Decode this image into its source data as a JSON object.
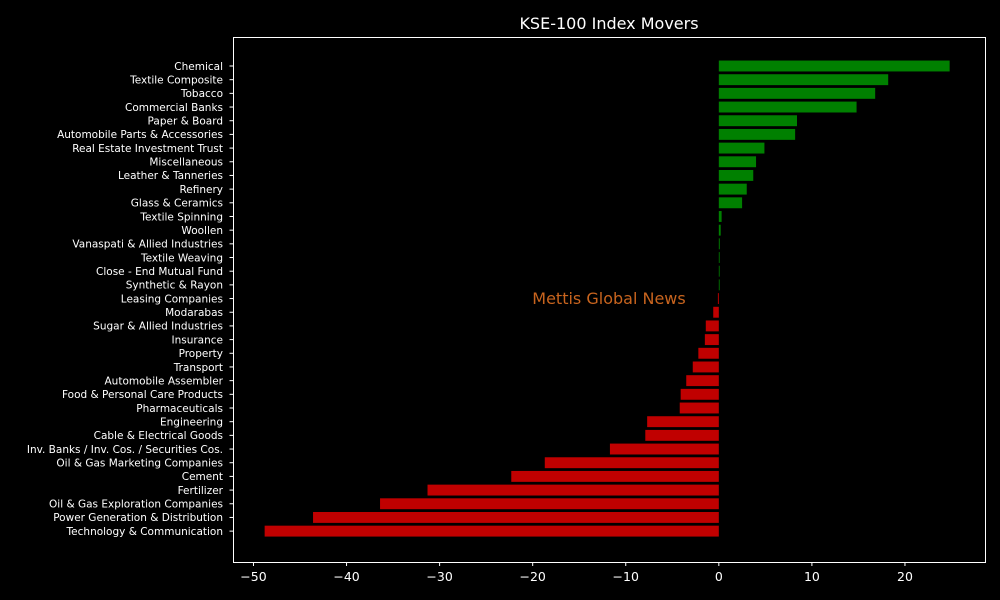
{
  "chart_data": {
    "type": "bar",
    "orientation": "horizontal",
    "title": "KSE-100 Index Movers",
    "xlabel": "",
    "ylabel": "",
    "xlim": [
      -52.2,
      28.6
    ],
    "xticks": [
      -50,
      -40,
      -30,
      -20,
      -10,
      0,
      10,
      20
    ],
    "xtick_labels": [
      "−50",
      "−40",
      "−30",
      "−20",
      "−10",
      "0",
      "10",
      "20"
    ],
    "grid": false,
    "positive_color": "#008000",
    "negative_color": "#c00000",
    "categories": [
      "Chemical",
      "Textile Composite",
      "Tobacco",
      "Commercial Banks",
      "Paper & Board",
      "Automobile Parts & Accessories",
      "Real Estate Investment Trust",
      "Miscellaneous",
      "Leather & Tanneries",
      "Refinery",
      "Glass & Ceramics",
      "Textile Spinning",
      "Woollen",
      "Vanaspati & Allied Industries",
      "Textile Weaving",
      "Close - End Mutual Fund",
      "Synthetic & Rayon",
      "Leasing Companies",
      "Modarabas",
      "Sugar & Allied Industries",
      "Insurance",
      "Property",
      "Transport",
      "Automobile Assembler",
      "Food & Personal Care Products",
      "Pharmaceuticals",
      "Engineering",
      "Cable & Electrical Goods",
      "Inv. Banks / Inv. Cos. / Securities Cos.",
      "Oil & Gas Marketing Companies",
      "Cement",
      "Fertilizer",
      "Oil & Gas Exploration Companies",
      "Power Generation & Distribution",
      "Technology & Communication"
    ],
    "values": [
      24.8,
      18.2,
      16.8,
      14.8,
      8.4,
      8.2,
      4.9,
      4.0,
      3.7,
      3.0,
      2.5,
      0.3,
      0.2,
      0.1,
      0.0,
      0.0,
      0.0,
      -0.1,
      -0.6,
      -1.4,
      -1.5,
      -2.2,
      -2.8,
      -3.5,
      -4.1,
      -4.2,
      -7.7,
      -7.9,
      -11.7,
      -18.7,
      -22.3,
      -31.3,
      -36.4,
      -43.6,
      -48.8
    ]
  },
  "watermark": "Mettis Global News"
}
